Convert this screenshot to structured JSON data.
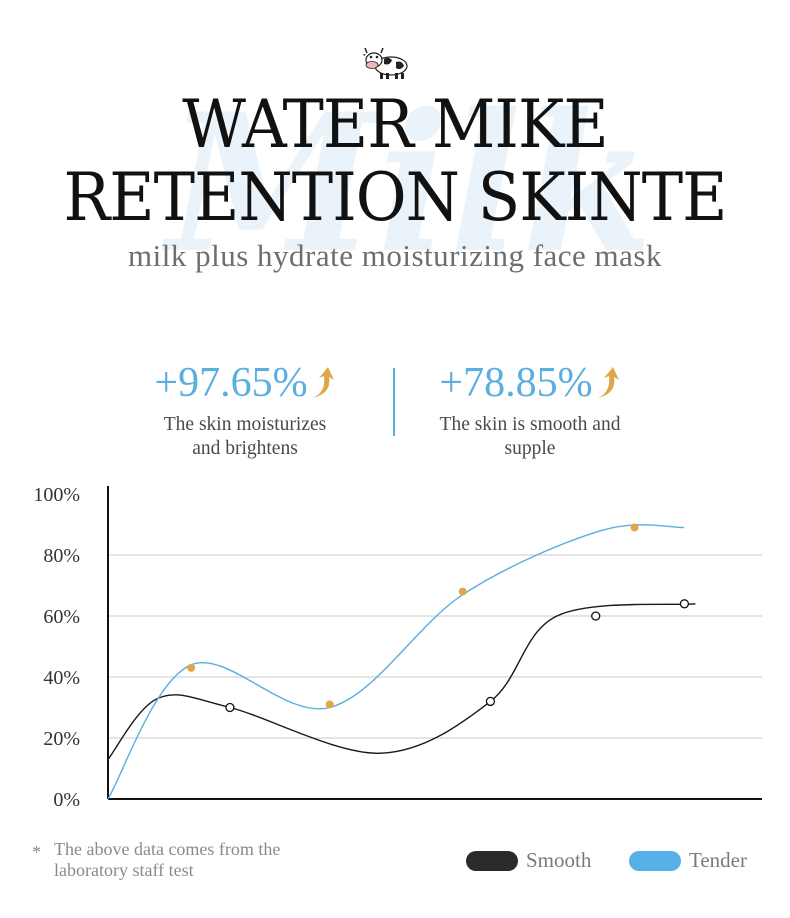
{
  "header": {
    "title_line1": "WATER MIKE",
    "title_line2": "RETENTION SKINTE",
    "subtitle": "milk plus hydrate moisturizing face mask",
    "watermark_text": "Milk"
  },
  "stats": [
    {
      "value": "+97.65%",
      "desc_line1": "The skin moisturizes",
      "desc_line2": "and brightens"
    },
    {
      "value": "+78.85%",
      "desc_line1": "The skin is smooth and",
      "desc_line2": "supple"
    }
  ],
  "colors": {
    "accent": "#5aaee0",
    "arrow": "#e0a64a",
    "smooth": "#1a1a1a",
    "tender": "#5aaee0",
    "marker": "#e0a64a"
  },
  "chart_data": {
    "type": "line",
    "title": "",
    "xlabel": "",
    "ylabel": "",
    "ylim": [
      0,
      100
    ],
    "yticks": [
      "0%",
      "20%",
      "40%",
      "60%",
      "80%",
      "100%"
    ],
    "grid": true,
    "legend_position": "bottom-right",
    "series": [
      {
        "name": "Smooth",
        "marker_style": "hollow-circle",
        "x": [
          0,
          0.9,
          2.2,
          4.9,
          6.9,
          8.1,
          10.6
        ],
        "y": [
          13,
          33,
          30,
          15,
          32,
          60,
          64
        ],
        "markers": [
          [
            2.2,
            30
          ],
          [
            6.9,
            32
          ],
          [
            8.8,
            60
          ],
          [
            10.4,
            64
          ]
        ]
      },
      {
        "name": "Tender",
        "marker_style": "filled-dot",
        "x": [
          0,
          1.5,
          4.0,
          6.4,
          8.9,
          10.4
        ],
        "y": [
          0,
          44,
          30,
          67,
          88,
          89
        ],
        "markers": [
          [
            1.5,
            43
          ],
          [
            4.0,
            31
          ],
          [
            6.4,
            68
          ],
          [
            9.5,
            89
          ]
        ]
      }
    ]
  },
  "footnote": {
    "star": "*",
    "text": "The above data comes from the laboratory staff test"
  },
  "legend": [
    {
      "label": "Smooth",
      "color": "#2b2b2b"
    },
    {
      "label": "Tender",
      "color": "#58b0e8"
    }
  ]
}
